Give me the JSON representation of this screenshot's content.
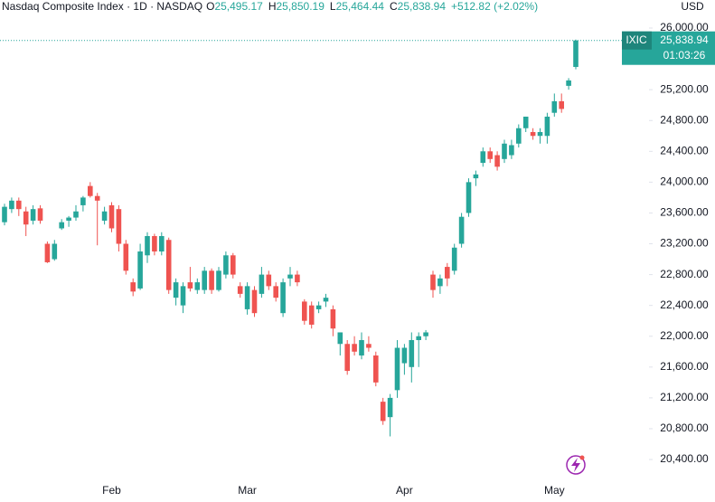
{
  "chart_data": {
    "type": "candlestick",
    "header": {
      "symbol": "Nasdaq Composite Index · 1D · NASDAQ",
      "ohlc": [
        {
          "key": "O",
          "value": "25,495.17"
        },
        {
          "key": "H",
          "value": "25,850.19"
        },
        {
          "key": "L",
          "value": "25,464.44"
        },
        {
          "key": "C",
          "value": "25,838.94"
        }
      ],
      "change": "+512.82 (+2.02%)"
    },
    "axis_unit": "USD",
    "price_label": {
      "ticker": "IXIC",
      "price": "25,838.94",
      "countdown": "01:03:26"
    },
    "up_color": "#26a69a",
    "down_color": "#ef5350",
    "categories": [
      null,
      null,
      null,
      null,
      null,
      null,
      null,
      null,
      null,
      null,
      null,
      null,
      null,
      null,
      null,
      "Feb",
      null,
      null,
      null,
      null,
      null,
      null,
      null,
      null,
      null,
      null,
      null,
      null,
      null,
      null,
      null,
      null,
      null,
      null,
      "Mar",
      null,
      null,
      null,
      null,
      null,
      null,
      null,
      null,
      null,
      null,
      null,
      null,
      null,
      null,
      null,
      null,
      null,
      null,
      null,
      null,
      null,
      "Apr",
      null,
      null,
      null,
      null,
      null,
      null,
      null,
      null,
      null,
      null,
      null,
      null,
      null,
      null,
      null,
      null,
      null,
      null,
      null,
      null,
      "May",
      null,
      null,
      null
    ],
    "open": [
      23480,
      23650,
      23760,
      23620,
      23500,
      23660,
      23200,
      23000,
      23400,
      23500,
      23540,
      23700,
      23950,
      23820,
      23500,
      23700,
      23650,
      23200,
      22700,
      22620,
      23050,
      23300,
      23100,
      23250,
      22500,
      22400,
      22700,
      22600,
      22600,
      22850,
      22600,
      22800,
      23050,
      22650,
      22350,
      22600,
      22550,
      22800,
      22650,
      22300,
      22750,
      22800,
      22450,
      22400,
      22350,
      22450,
      22350,
      21900,
      21900,
      21900,
      21750,
      21900,
      21750,
      21150,
      20950,
      21300,
      21650,
      21600,
      21950,
      22000,
      22800,
      22650,
      22900,
      22850,
      23200,
      23600,
      24050,
      24250,
      24400,
      24350,
      24300,
      24350,
      24500,
      24700,
      24650,
      24600,
      24600,
      24900,
      25050,
      25250,
      25495.17
    ],
    "high": [
      23720,
      23800,
      23800,
      23680,
      23700,
      23700,
      23230,
      23250,
      23520,
      23560,
      23700,
      23820,
      24000,
      23860,
      23680,
      23740,
      23700,
      23250,
      22750,
      23200,
      23350,
      23330,
      23350,
      23280,
      22750,
      22700,
      22900,
      22750,
      22900,
      22880,
      22900,
      23100,
      23080,
      22700,
      22700,
      22650,
      22900,
      22850,
      22700,
      22750,
      22900,
      22850,
      22480,
      22450,
      22450,
      22550,
      22400,
      22050,
      21950,
      22000,
      22050,
      22000,
      21800,
      21200,
      21250,
      21950,
      21900,
      22050,
      22050,
      22080,
      22850,
      22800,
      22950,
      23200,
      23600,
      24050,
      24150,
      24450,
      24450,
      24400,
      24550,
      24550,
      24750,
      24850,
      24700,
      24700,
      24900,
      25150,
      25150,
      25350,
      25850.19
    ],
    "low": [
      23440,
      23600,
      23560,
      23300,
      23450,
      23460,
      22950,
      22980,
      23380,
      23420,
      23500,
      23620,
      23800,
      23180,
      23450,
      23350,
      23100,
      22800,
      22520,
      22600,
      22950,
      23050,
      23050,
      22550,
      22400,
      22300,
      22580,
      22550,
      22550,
      22550,
      22580,
      22750,
      22750,
      22500,
      22280,
      22250,
      22500,
      22600,
      22450,
      22250,
      22650,
      22650,
      22150,
      22100,
      22300,
      22380,
      22000,
      21750,
      21500,
      21750,
      21700,
      21800,
      21350,
      20850,
      20700,
      21200,
      21500,
      21400,
      21600,
      21950,
      22500,
      22550,
      22650,
      22800,
      23150,
      23550,
      23950,
      24200,
      24250,
      24150,
      24250,
      24300,
      24450,
      24650,
      24550,
      24500,
      24500,
      24850,
      24900,
      25200,
      25464.44
    ],
    "close": [
      23680,
      23760,
      23650,
      23450,
      23650,
      23500,
      22960,
      23200,
      23480,
      23540,
      23620,
      23800,
      23820,
      23760,
      23620,
      23400,
      23200,
      22850,
      22580,
      23100,
      23300,
      23100,
      23300,
      22600,
      22700,
      22650,
      22620,
      22700,
      22850,
      22600,
      22850,
      23050,
      22800,
      22550,
      22650,
      22300,
      22800,
      22650,
      22500,
      22700,
      22800,
      22700,
      22200,
      22150,
      22400,
      22500,
      22100,
      22050,
      21550,
      21800,
      21950,
      21850,
      21400,
      20900,
      21200,
      21850,
      21850,
      21950,
      22000,
      22050,
      22600,
      22750,
      22750,
      23150,
      23550,
      24000,
      24100,
      24400,
      24300,
      24200,
      24500,
      24480,
      24700,
      24850,
      24600,
      24650,
      24850,
      25050,
      24950,
      25320,
      25838.94
    ],
    "ylim": [
      20142,
      26364
    ],
    "yticks": [
      {
        "value": 26000,
        "label": "26,000.00"
      },
      {
        "value": 25200,
        "label": "25,200.00"
      },
      {
        "value": 24800,
        "label": "24,800.00"
      },
      {
        "value": 24400,
        "label": "24,400.00"
      },
      {
        "value": 24000,
        "label": "24,000.00"
      },
      {
        "value": 23600,
        "label": "23,600.00"
      },
      {
        "value": 23200,
        "label": "23,200.00"
      },
      {
        "value": 22800,
        "label": "22,800.00"
      },
      {
        "value": 22400,
        "label": "22,400.00"
      },
      {
        "value": 22000,
        "label": "22,000.00"
      },
      {
        "value": 21600,
        "label": "21,600.00"
      },
      {
        "value": 21200,
        "label": "21,200.00"
      },
      {
        "value": 20800,
        "label": "20,800.00"
      },
      {
        "value": 20400,
        "label": "20,400.00"
      }
    ]
  }
}
